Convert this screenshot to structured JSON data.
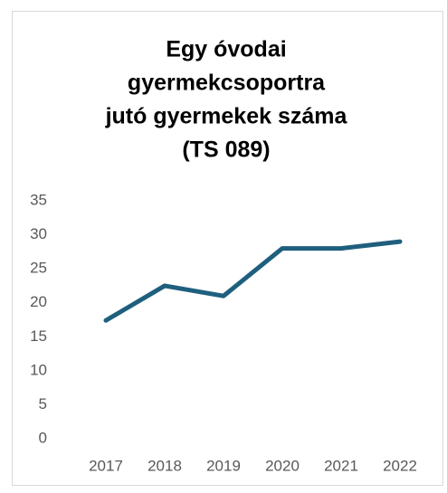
{
  "chart_data": {
    "type": "line",
    "title": [
      "Egy óvodai",
      "gyermekcsoportra",
      "jutó gyermekek száma",
      "(TS 089)"
    ],
    "categories": [
      "2017",
      "2018",
      "2019",
      "2020",
      "2021",
      "2022"
    ],
    "values": [
      17.4,
      22.5,
      21,
      28,
      28,
      29
    ],
    "color": "#1f5f7e",
    "ylim": [
      0,
      35
    ],
    "yticks": [
      0,
      5,
      10,
      15,
      20,
      25,
      30,
      35
    ],
    "grid": false
  }
}
